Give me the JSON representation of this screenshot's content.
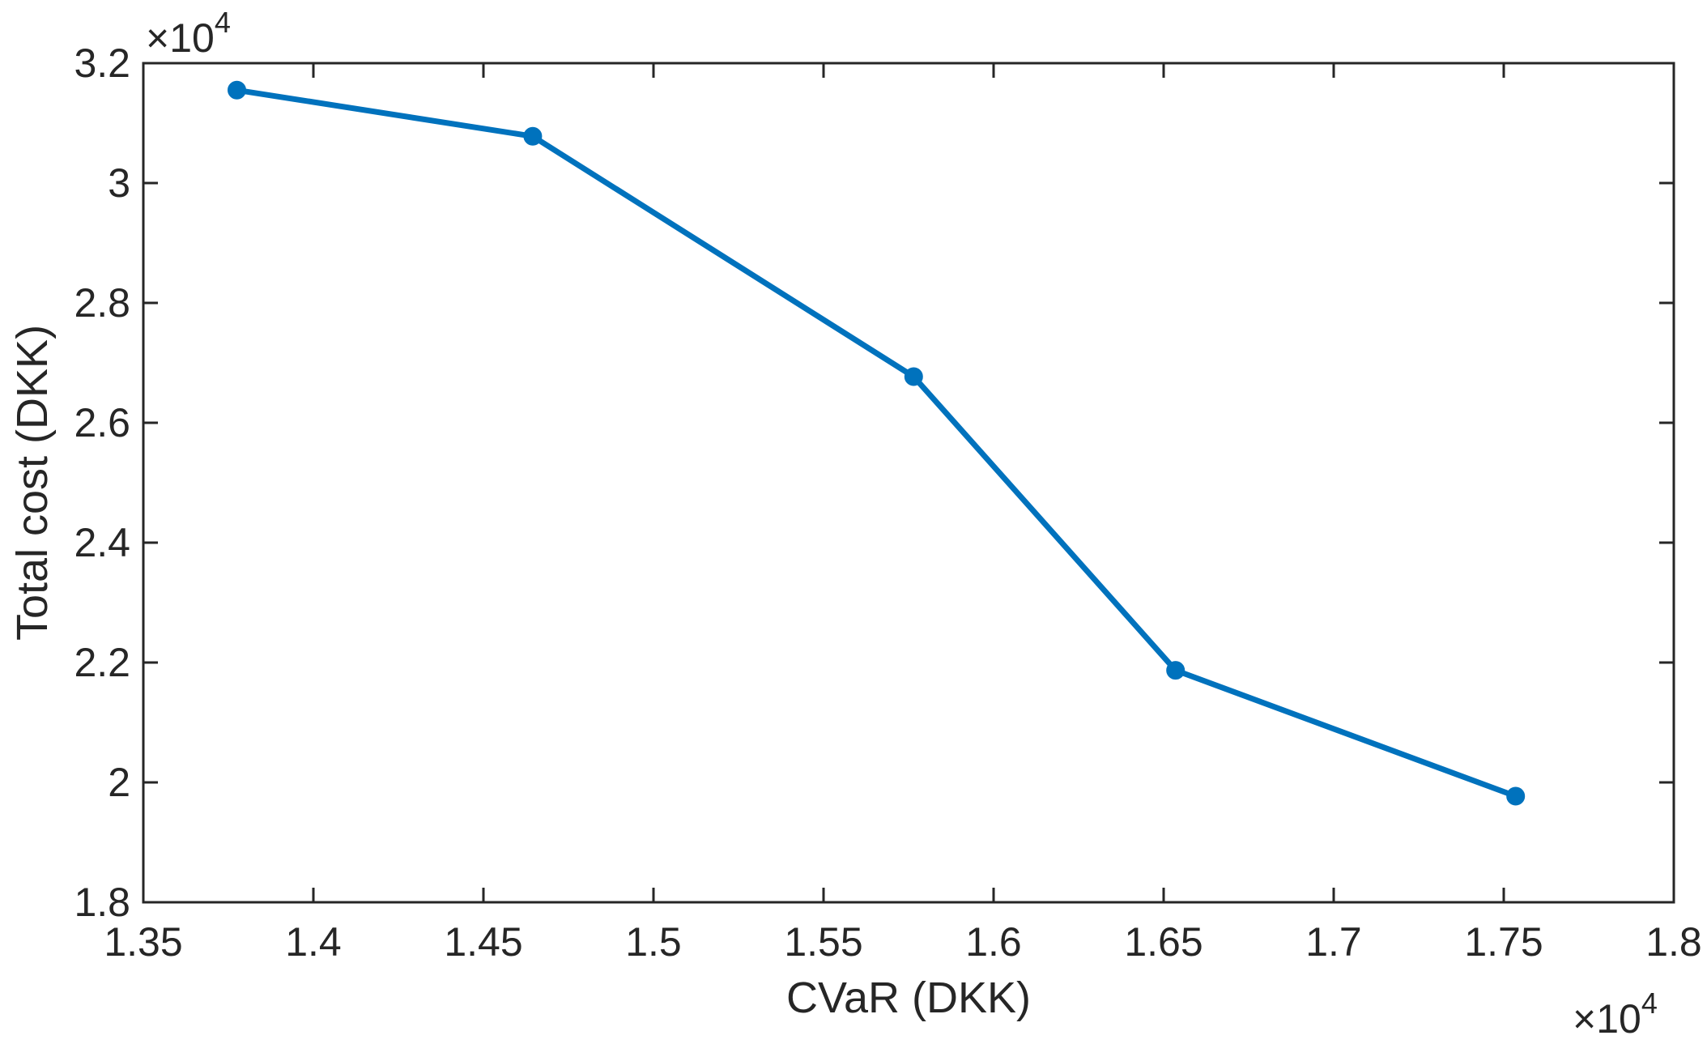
{
  "chart_data": {
    "type": "line",
    "xlabel": "CVaR (DKK)",
    "ylabel": "Total cost (DKK)",
    "x_multiplier": "×10",
    "x_multiplier_exponent": "4",
    "y_multiplier": "×10",
    "y_multiplier_exponent": "4",
    "xlim": [
      1.35,
      1.8
    ],
    "ylim": [
      1.8,
      3.2
    ],
    "xticks": [
      "1.35",
      "1.4",
      "1.45",
      "1.5",
      "1.55",
      "1.6",
      "1.65",
      "1.7",
      "1.75",
      "1.8"
    ],
    "yticks": [
      "1.8",
      "2",
      "2.2",
      "2.4",
      "2.6",
      "2.8",
      "3",
      "3.2"
    ],
    "grid": false,
    "series": [
      {
        "color": "#0072BD",
        "marker": "circle",
        "x": [
          1.3775,
          1.4645,
          1.5765,
          1.6535,
          1.7535
        ],
        "y": [
          3.155,
          3.078,
          2.677,
          2.187,
          1.977
        ]
      }
    ]
  }
}
